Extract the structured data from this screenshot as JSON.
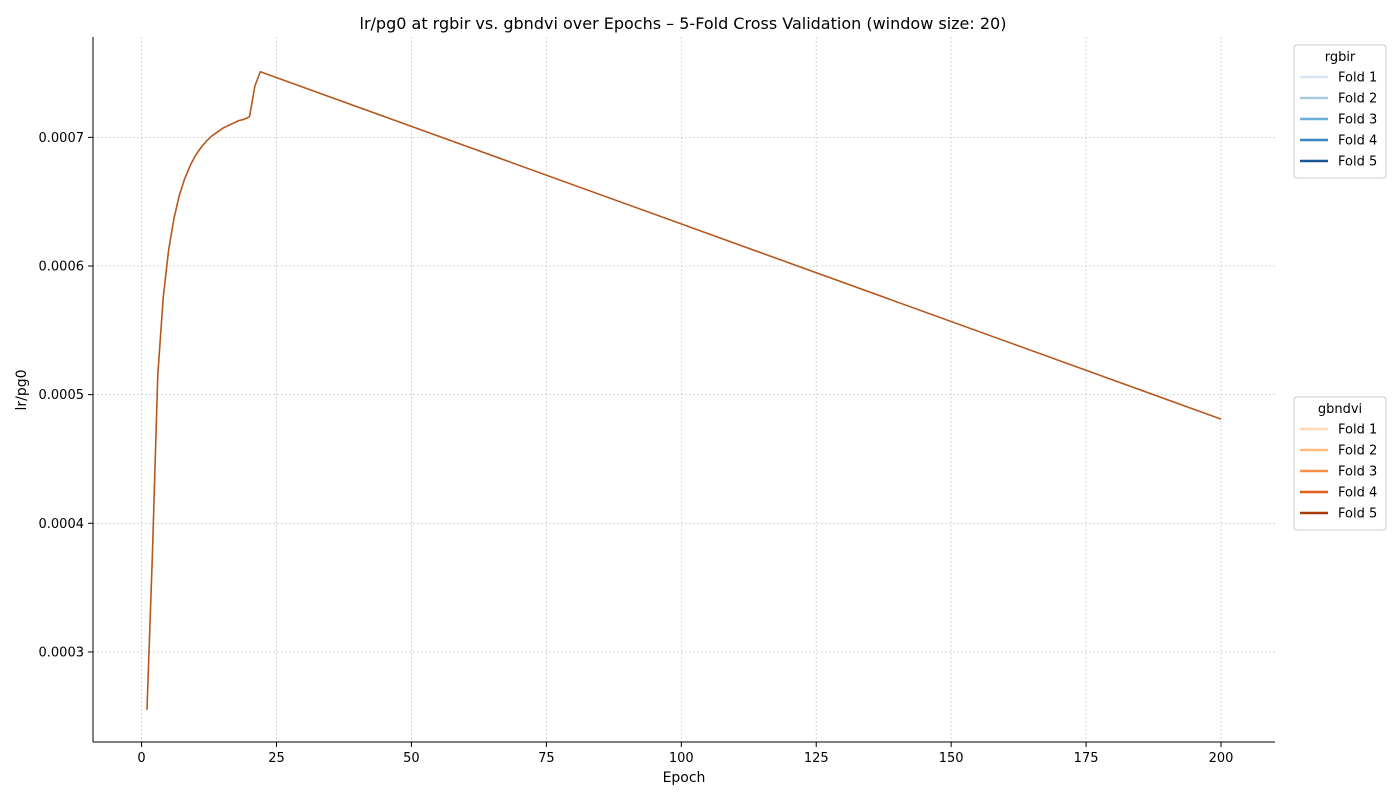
{
  "chart_data": {
    "type": "line",
    "title": "lr/pg0 at rgbir vs. gbndvi over Epochs – 5-Fold Cross Validation (window size: 20)",
    "xlabel": "Epoch",
    "ylabel": "lr/pg0",
    "xlim": [
      -9,
      210
    ],
    "ylim": [
      0.00023,
      0.000778
    ],
    "xticks": [
      0,
      25,
      50,
      75,
      100,
      125,
      150,
      175,
      200
    ],
    "yticks": [
      0.0003,
      0.0004,
      0.0005,
      0.0006,
      0.0007
    ],
    "ytick_labels": [
      "0.0003",
      "0.0004",
      "0.0005",
      "0.0006",
      "0.0007"
    ],
    "grid": true,
    "curve": {
      "warmup_start": [
        1,
        0.000255
      ],
      "warmup_epochs": [
        1,
        2,
        3,
        4,
        5,
        6,
        7,
        8,
        9,
        10,
        11,
        12,
        13,
        14,
        15,
        16,
        17,
        18,
        19,
        20,
        21,
        22
      ],
      "warmup_values": [
        0.000255,
        0.000375,
        0.000515,
        0.000575,
        0.000612,
        0.000637,
        0.000655,
        0.000668,
        0.000678,
        0.000686,
        0.000692,
        0.000697,
        0.000701,
        0.000704,
        0.000707,
        0.000709,
        0.000711,
        0.000713,
        0.000714,
        0.000716,
        0.00074,
        0.000751
      ],
      "decay_start": [
        22,
        0.000751
      ],
      "decay_end": [
        200,
        0.000481
      ]
    },
    "legends": [
      {
        "title": "rgbir",
        "placement": "upper-right",
        "series": [
          {
            "name": "Fold 1",
            "color": "#d6e5f4"
          },
          {
            "name": "Fold 2",
            "color": "#a9cce3"
          },
          {
            "name": "Fold 3",
            "color": "#6baed6"
          },
          {
            "name": "Fold 4",
            "color": "#3a87c0"
          },
          {
            "name": "Fold 5",
            "color": "#1a5797"
          }
        ]
      },
      {
        "title": "gbndvi",
        "placement": "center-right",
        "series": [
          {
            "name": "Fold 1",
            "color": "#fdd9b5"
          },
          {
            "name": "Fold 2",
            "color": "#fdb97d"
          },
          {
            "name": "Fold 3",
            "color": "#f88f45"
          },
          {
            "name": "Fold 4",
            "color": "#e1601a"
          },
          {
            "name": "Fold 5",
            "color": "#a63c0a"
          }
        ]
      }
    ],
    "visible_line_color": "#b5571f"
  }
}
